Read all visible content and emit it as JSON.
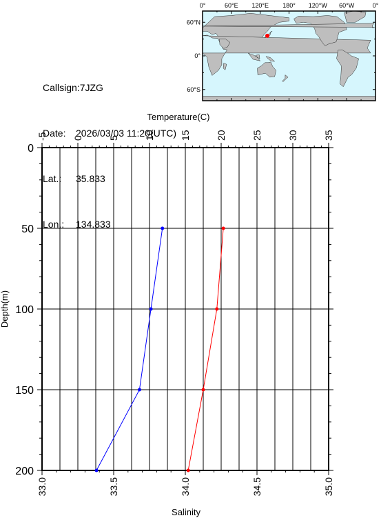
{
  "station": {
    "callsign_label": "Callsign:",
    "callsign": "7JZG",
    "date_label": "Date:",
    "date": "2026/03/03 11:20(UTC)",
    "lat_label": "Lat.:",
    "lat": "35.833",
    "lon_label": "Lon.:",
    "lon": "134.833"
  },
  "map": {
    "top_ticks": [
      "0°",
      "60°E",
      "120°E",
      "180°",
      "120°W",
      "60°W",
      "0°"
    ],
    "left_ticks": [
      "60°N",
      "0°",
      "60°S"
    ],
    "ocean_color": "#d6f6fd",
    "land_color": "#bebebe",
    "marker_color": "#ff0000",
    "marker": {
      "lon": 134.833,
      "lat": 35.833
    }
  },
  "chart_data": {
    "type": "line",
    "title": "",
    "top_axis": {
      "label": "Temperature(C)",
      "range": [
        -5,
        35
      ],
      "ticks": [
        -5,
        0,
        5,
        10,
        15,
        20,
        25,
        30,
        35
      ]
    },
    "bottom_axis": {
      "label": "Salinity",
      "range": [
        33.0,
        35.0
      ],
      "ticks": [
        "33.0",
        "33.5",
        "34.0",
        "34.5",
        "35.0"
      ]
    },
    "left_axis": {
      "label": "Depth(m)",
      "range": [
        0,
        200
      ],
      "inverted": true,
      "ticks": [
        0,
        50,
        100,
        150,
        200
      ]
    },
    "grid": true,
    "series": [
      {
        "variable": "temperature",
        "color": "#ff0000",
        "points": [
          {
            "depth": 50,
            "value": 20.3
          },
          {
            "depth": 100,
            "value": 19.4
          },
          {
            "depth": 150,
            "value": 17.5
          },
          {
            "depth": 200,
            "value": 15.4
          }
        ]
      },
      {
        "variable": "salinity",
        "color": "#0000ff",
        "points": [
          {
            "depth": 50,
            "value": 33.84
          },
          {
            "depth": 100,
            "value": 33.76
          },
          {
            "depth": 150,
            "value": 33.68
          },
          {
            "depth": 200,
            "value": 33.38
          }
        ]
      }
    ]
  }
}
